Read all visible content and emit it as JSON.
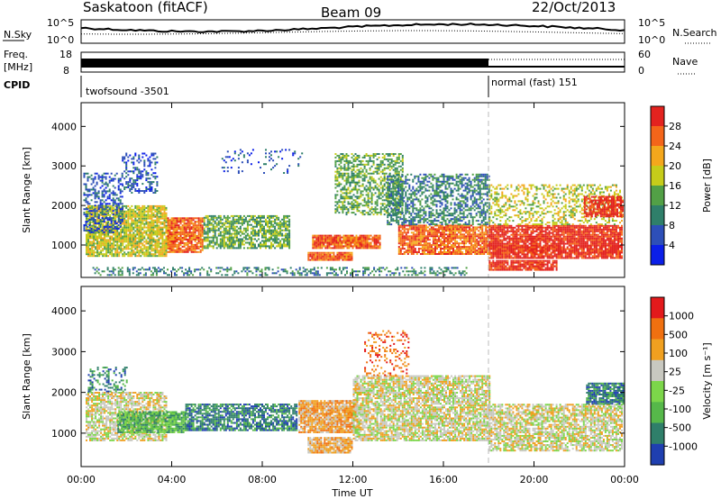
{
  "header": {
    "station": "Saskatoon (fitACF)",
    "beam": "Beam 09",
    "date": "22/Oct/2013"
  },
  "noise_panel": {
    "left_label": "N.Sky",
    "right_label": "N.Search",
    "left_ticks": [
      "10^5",
      "10^0"
    ],
    "right_ticks": [
      "10^5",
      "10^0"
    ]
  },
  "freq_panel": {
    "left_label_1": "Freq.",
    "left_label_2": "[MHz]",
    "left_ticks": [
      "18",
      "8"
    ],
    "right_label": "Nave",
    "right_ticks": [
      "60",
      "0"
    ]
  },
  "cpid": {
    "label": "CPID",
    "segments": [
      {
        "name": "twofsound -3501",
        "start_hour": 0,
        "end_hour": 18
      },
      {
        "name": "normal (fast) 151",
        "start_hour": 18,
        "end_hour": 24
      }
    ]
  },
  "chart_data": [
    {
      "type": "heatmap",
      "quantity": "Power",
      "x": {
        "label": "",
        "range_hours": [
          0,
          24
        ],
        "tick_labels": [
          "00:00",
          "04:00",
          "08:00",
          "12:00",
          "16:00",
          "20:00",
          "00:00"
        ]
      },
      "y": {
        "label": "Slant Range [km]",
        "ylim": [
          180,
          4600
        ],
        "tick_labels": [
          "1000",
          "2000",
          "3000",
          "4000"
        ]
      },
      "colorbar": {
        "label": "Power [dB]",
        "tick_labels": [
          "28",
          "24",
          "20",
          "16",
          "12",
          "8",
          "4"
        ],
        "colors": [
          "#0b1fe8",
          "#2d4fb8",
          "#2f7f6a",
          "#52a046",
          "#c6cc1a",
          "#f4a71c",
          "#f4651a",
          "#e3231f"
        ]
      },
      "regions": [
        {
          "t0": 0.2,
          "t1": 3.8,
          "r0": 700,
          "r1": 2000,
          "level": 4,
          "density": 0.85
        },
        {
          "t0": 0.1,
          "t1": 1.8,
          "r0": 1300,
          "r1": 2800,
          "level": 1,
          "density": 0.45
        },
        {
          "t0": 1.8,
          "t1": 3.4,
          "r0": 2300,
          "r1": 3300,
          "level": 1,
          "density": 0.35
        },
        {
          "t0": 3.8,
          "t1": 5.4,
          "r0": 800,
          "r1": 1700,
          "level": 6,
          "density": 0.9
        },
        {
          "t0": 5.4,
          "t1": 9.2,
          "r0": 900,
          "r1": 1750,
          "level": 3,
          "density": 0.7
        },
        {
          "t0": 6.2,
          "t1": 9.8,
          "r0": 2800,
          "r1": 3400,
          "level": 1,
          "density": 0.12
        },
        {
          "t0": 10.0,
          "t1": 12.0,
          "r0": 600,
          "r1": 800,
          "level": 6,
          "density": 0.95
        },
        {
          "t0": 10.2,
          "t1": 13.2,
          "r0": 900,
          "r1": 1250,
          "level": 6,
          "density": 0.9
        },
        {
          "t0": 11.2,
          "t1": 14.2,
          "r0": 1750,
          "r1": 3300,
          "level": 3,
          "density": 0.55
        },
        {
          "t0": 14.0,
          "t1": 18.0,
          "r0": 750,
          "r1": 1500,
          "level": 6,
          "density": 0.85
        },
        {
          "t0": 13.5,
          "t1": 18.0,
          "r0": 1500,
          "r1": 2800,
          "level": 2,
          "density": 0.55
        },
        {
          "t0": 18.0,
          "t1": 23.9,
          "r0": 650,
          "r1": 1500,
          "level": 7,
          "density": 0.9
        },
        {
          "t0": 18.0,
          "t1": 21.0,
          "r0": 350,
          "r1": 600,
          "level": 7,
          "density": 0.85
        },
        {
          "t0": 18.0,
          "t1": 23.9,
          "r0": 1500,
          "r1": 2500,
          "level": 4,
          "density": 0.4
        },
        {
          "t0": 22.2,
          "t1": 23.9,
          "r0": 1700,
          "r1": 2200,
          "level": 7,
          "density": 0.8
        },
        {
          "t0": 0.5,
          "t1": 17.0,
          "r0": 220,
          "r1": 420,
          "level": 2,
          "density": 0.35
        }
      ]
    },
    {
      "type": "heatmap",
      "quantity": "Velocity",
      "x": {
        "label": "Time UT",
        "range_hours": [
          0,
          24
        ],
        "tick_labels": [
          "00:00",
          "04:00",
          "08:00",
          "12:00",
          "16:00",
          "20:00",
          "00:00"
        ]
      },
      "y": {
        "label": "Slant Range [km]",
        "ylim": [
          180,
          4600
        ],
        "tick_labels": [
          "1000",
          "2000",
          "3000",
          "4000"
        ]
      },
      "colorbar": {
        "label": "Velocity [m s⁻¹]",
        "tick_labels": [
          "1000",
          "500",
          "100",
          "25",
          "-25",
          "-100",
          "-500",
          "-1000"
        ],
        "colors": [
          "#1f3fb0",
          "#2f7f6a",
          "#56b84a",
          "#7cd64a",
          "#c8c8c0",
          "#f0a020",
          "#f07010",
          "#e31a1c"
        ]
      },
      "regions": [
        {
          "t0": 0.2,
          "t1": 3.8,
          "r0": 800,
          "r1": 2000,
          "level": 4,
          "density": 0.75
        },
        {
          "t0": 1.6,
          "t1": 4.6,
          "r0": 1000,
          "r1": 1500,
          "level": 2,
          "density": 0.85
        },
        {
          "t0": 4.6,
          "t1": 9.5,
          "r0": 1050,
          "r1": 1700,
          "level": 1,
          "density": 0.75
        },
        {
          "t0": 9.6,
          "t1": 12.2,
          "r0": 1000,
          "r1": 1800,
          "level": 5,
          "density": 0.9
        },
        {
          "t0": 10.0,
          "t1": 12.0,
          "r0": 500,
          "r1": 900,
          "level": 5,
          "density": 0.9
        },
        {
          "t0": 12.0,
          "t1": 18.0,
          "r0": 800,
          "r1": 2400,
          "level": 4,
          "density": 0.8
        },
        {
          "t0": 18.0,
          "t1": 23.9,
          "r0": 550,
          "r1": 1700,
          "level": 4,
          "density": 0.75
        },
        {
          "t0": 22.3,
          "t1": 23.9,
          "r0": 1700,
          "r1": 2200,
          "level": 1,
          "density": 0.9
        },
        {
          "t0": 12.5,
          "t1": 14.5,
          "r0": 2400,
          "r1": 3500,
          "level": 6,
          "density": 0.2
        },
        {
          "t0": 0.3,
          "t1": 2.0,
          "r0": 2000,
          "r1": 2600,
          "level": 1,
          "density": 0.35
        }
      ]
    }
  ]
}
